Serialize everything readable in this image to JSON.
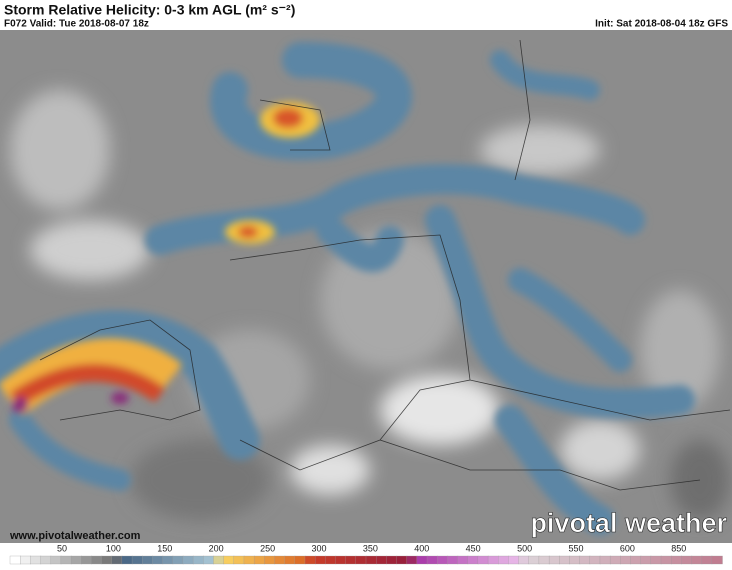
{
  "header": {
    "title": "Storm Relative Helicity: 0-3 km AGL (m² s⁻²)",
    "valid": "F072 Valid: Tue 2018-08-07 18z",
    "init": "Init: Sat 2018-08-04 18z GFS"
  },
  "colorbar": {
    "ticks": [
      50,
      100,
      150,
      200,
      250,
      300,
      350,
      400,
      450,
      500,
      550,
      600,
      850
    ]
  },
  "footer": {
    "url": "www.pivotalweather.com",
    "logo": "pivotal weather"
  }
}
